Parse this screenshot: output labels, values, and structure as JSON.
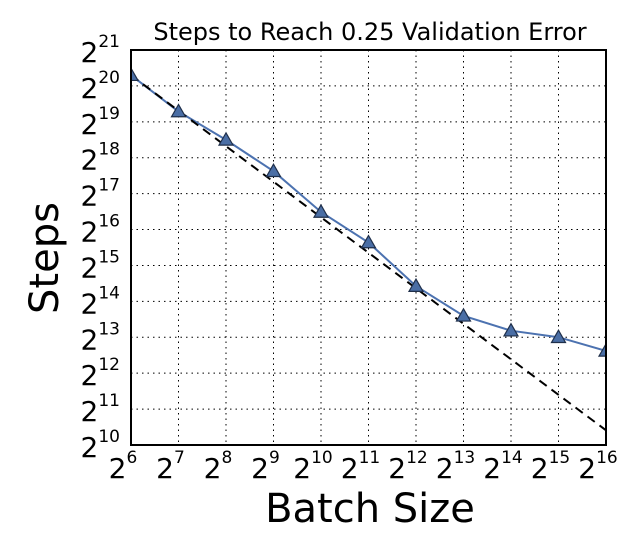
{
  "chart_data": {
    "type": "line",
    "title": "Steps to Reach 0.25 Validation Error",
    "xlabel": "Batch Size",
    "ylabel": "Steps",
    "x_scale": "log2",
    "y_scale": "log2",
    "xlim": [
      64,
      65536
    ],
    "ylim": [
      1024,
      2097152
    ],
    "grid": true,
    "x_ticks": [
      {
        "base": "2",
        "exp": "6",
        "value": 64
      },
      {
        "base": "2",
        "exp": "7",
        "value": 128
      },
      {
        "base": "2",
        "exp": "8",
        "value": 256
      },
      {
        "base": "2",
        "exp": "9",
        "value": 512
      },
      {
        "base": "2",
        "exp": "10",
        "value": 1024
      },
      {
        "base": "2",
        "exp": "11",
        "value": 2048
      },
      {
        "base": "2",
        "exp": "12",
        "value": 4096
      },
      {
        "base": "2",
        "exp": "13",
        "value": 8192
      },
      {
        "base": "2",
        "exp": "14",
        "value": 16384
      },
      {
        "base": "2",
        "exp": "15",
        "value": 32768
      },
      {
        "base": "2",
        "exp": "16",
        "value": 65536
      }
    ],
    "y_ticks": [
      {
        "base": "2",
        "exp": "10",
        "value": 1024
      },
      {
        "base": "2",
        "exp": "11",
        "value": 2048
      },
      {
        "base": "2",
        "exp": "12",
        "value": 4096
      },
      {
        "base": "2",
        "exp": "13",
        "value": 8192
      },
      {
        "base": "2",
        "exp": "14",
        "value": 16384
      },
      {
        "base": "2",
        "exp": "15",
        "value": 32768
      },
      {
        "base": "2",
        "exp": "16",
        "value": 65536
      },
      {
        "base": "2",
        "exp": "17",
        "value": 131072
      },
      {
        "base": "2",
        "exp": "18",
        "value": 262144
      },
      {
        "base": "2",
        "exp": "19",
        "value": 524288
      },
      {
        "base": "2",
        "exp": "20",
        "value": 1048576
      },
      {
        "base": "2",
        "exp": "21",
        "value": 2097152
      }
    ],
    "series": [
      {
        "style": "solid-with-triangle-markers",
        "color": "#4c72b0",
        "x": [
          64,
          128,
          256,
          512,
          1024,
          2048,
          4096,
          8192,
          16384,
          32768,
          65536
        ],
        "y": [
          1290000,
          640000,
          370000,
          202000,
          92000,
          51000,
          22000,
          12400,
          9300,
          8200,
          6300
        ]
      },
      {
        "style": "dashed",
        "color": "#000000",
        "x": [
          64,
          65536
        ],
        "y": [
          1290000,
          1360
        ]
      }
    ]
  }
}
